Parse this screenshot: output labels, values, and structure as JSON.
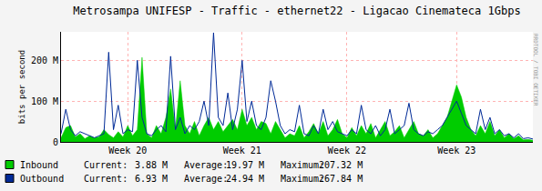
{
  "chart_data": {
    "type": "line",
    "title": "Metrosampa UNIFESP - Traffic - ethernet22 - Ligacao Cinemateca 1Gbps",
    "y_label": "bits per second",
    "watermark": "RRDTOOL / TOBI OETIKER",
    "grid": true,
    "ylim": [
      0,
      270
    ],
    "yticks": [
      0,
      {
        "value": 100,
        "label": "100 M"
      },
      {
        "value": 200,
        "label": "200 M"
      }
    ],
    "categories": [
      null,
      null,
      null,
      null,
      null,
      null,
      null,
      null,
      null,
      null,
      null,
      null,
      null,
      null,
      "Week 20",
      null,
      null,
      null,
      null,
      null,
      null,
      null,
      null,
      null,
      null,
      null,
      null,
      null,
      null,
      null,
      null,
      null,
      null,
      null,
      null,
      null,
      null,
      null,
      "Week 21",
      null,
      null,
      null,
      null,
      null,
      null,
      null,
      null,
      null,
      null,
      null,
      null,
      null,
      null,
      null,
      null,
      null,
      null,
      null,
      null,
      null,
      "Week 22",
      null,
      null,
      null,
      null,
      null,
      null,
      null,
      null,
      null,
      null,
      null,
      null,
      null,
      null,
      null,
      null,
      null,
      null,
      null,
      null,
      null,
      null,
      "Week 23",
      null,
      null,
      null,
      null,
      null,
      null,
      null,
      null,
      null,
      null,
      null,
      null,
      null,
      null,
      null,
      null
    ],
    "stat_labels": [
      "Current:",
      "Average:",
      "Maximum:"
    ],
    "series": [
      {
        "name": "Inbound",
        "type": "area",
        "color": "#00cc00",
        "stats": [
          {
            "value": 3.88,
            "label": "3.88 M"
          },
          {
            "value": 19.97,
            "label": "19.97 M"
          },
          {
            "value": 207.32,
            "label": "207.32 M"
          }
        ],
        "values": [
          10,
          35,
          40,
          12,
          20,
          8,
          15,
          10,
          12,
          30,
          18,
          10,
          25,
          12,
          40,
          15,
          30,
          207.32,
          20,
          10,
          40,
          20,
          60,
          130,
          30,
          150,
          40,
          20,
          50,
          15,
          40,
          60,
          30,
          50,
          25,
          40,
          55,
          30,
          80,
          40,
          60,
          30,
          50,
          45,
          20,
          50,
          30,
          10,
          20,
          15,
          40,
          10,
          25,
          45,
          20,
          50,
          15,
          30,
          55,
          20,
          10,
          35,
          15,
          40,
          20,
          45,
          10,
          30,
          50,
          15,
          25,
          40,
          10,
          30,
          50,
          20,
          15,
          30,
          10,
          20,
          40,
          60,
          100,
          140,
          110,
          60,
          30,
          15,
          40,
          20,
          50,
          15,
          30,
          10,
          20,
          8,
          15,
          5,
          6,
          3.88
        ]
      },
      {
        "name": "Outbound",
        "type": "line",
        "color": "#002a97",
        "stats": [
          {
            "value": 6.93,
            "label": "6.93 M"
          },
          {
            "value": 24.94,
            "label": "24.94 M"
          },
          {
            "value": 267.84,
            "label": "267.84 M"
          }
        ],
        "values": [
          20,
          80,
          30,
          15,
          25,
          20,
          15,
          10,
          15,
          20,
          220,
          30,
          90,
          20,
          30,
          25,
          200,
          60,
          20,
          15,
          30,
          40,
          25,
          210,
          30,
          60,
          20,
          40,
          30,
          50,
          100,
          40,
          267.84,
          60,
          40,
          120,
          30,
          80,
          200,
          50,
          100,
          40,
          30,
          60,
          150,
          100,
          40,
          20,
          30,
          25,
          90,
          20,
          15,
          40,
          20,
          80,
          30,
          50,
          25,
          20,
          15,
          30,
          20,
          90,
          30,
          20,
          40,
          15,
          30,
          80,
          20,
          30,
          40,
          95,
          30,
          20,
          15,
          25,
          20,
          30,
          40,
          60,
          80,
          100,
          70,
          40,
          30,
          20,
          80,
          30,
          60,
          20,
          30,
          15,
          20,
          10,
          20,
          8,
          10,
          6.93
        ]
      }
    ]
  }
}
